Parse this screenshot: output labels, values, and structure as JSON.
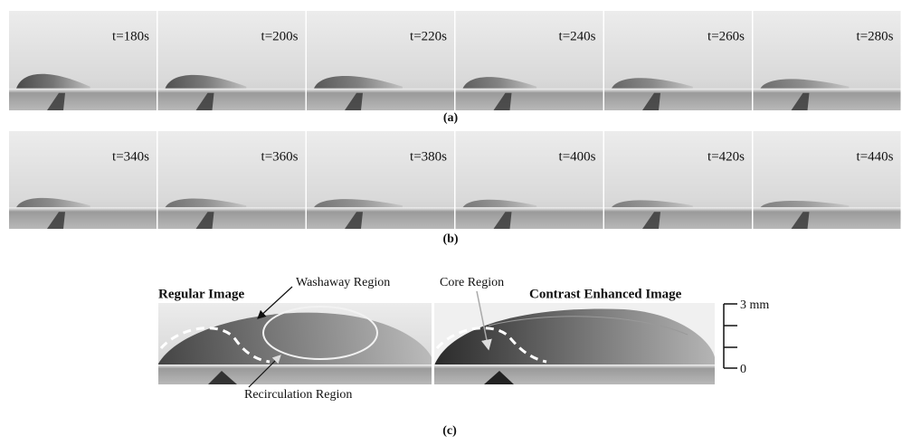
{
  "panel_a": {
    "label": "(a)",
    "frames": [
      "t=180s",
      "t=200s",
      "t=220s",
      "t=240s",
      "t=260s",
      "t=280s"
    ]
  },
  "panel_b": {
    "label": "(b)",
    "frames": [
      "t=340s",
      "t=360s",
      "t=380s",
      "t=400s",
      "t=420s",
      "t=440s"
    ]
  },
  "panel_c": {
    "label": "(c)",
    "regular_image": "Regular Image",
    "contrast_image": "Contrast Enhanced Image",
    "washaway": "Washaway Region",
    "core": "Core Region",
    "recirculation": "Recirculation Region",
    "scale_top": "3 mm",
    "scale_bottom": "0"
  }
}
